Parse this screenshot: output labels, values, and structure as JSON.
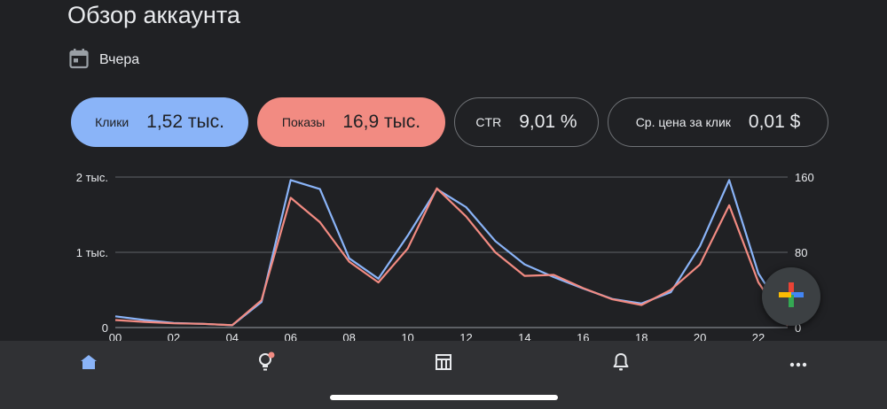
{
  "header": {
    "title": "Обзор аккаунта"
  },
  "date_filter": {
    "icon": "calendar-icon",
    "label": "Вчера"
  },
  "metrics": [
    {
      "label": "Клики",
      "value": "1,52 тыс.",
      "color": "#8ab4f8"
    },
    {
      "label": "Показы",
      "value": "16,9 тыс.",
      "color": "#f28b82"
    },
    {
      "label": "CTR",
      "value": "9,01 %"
    },
    {
      "label": "Ср. цена за клик",
      "value": "0,01 $"
    }
  ],
  "chart_data": {
    "type": "line",
    "title": "",
    "x": [
      "00",
      "01",
      "02",
      "03",
      "04",
      "05",
      "06",
      "07",
      "08",
      "09",
      "10",
      "11",
      "12",
      "13",
      "14",
      "15",
      "16",
      "17",
      "18",
      "19",
      "20",
      "21",
      "22",
      "23"
    ],
    "x_tick_labels": [
      "00",
      "02",
      "04",
      "06",
      "08",
      "10",
      "12",
      "14",
      "16",
      "18",
      "20",
      "22"
    ],
    "y_left": {
      "range": [
        0,
        2000
      ],
      "tick_labels": [
        "0",
        "1 тыс.",
        "2 тыс."
      ],
      "tick_values": [
        0,
        1000,
        2000
      ]
    },
    "y_right": {
      "range": [
        0,
        160
      ],
      "tick_labels": [
        "0",
        "80",
        "160"
      ],
      "tick_values": [
        0,
        80,
        160
      ]
    },
    "grid": true,
    "series": [
      {
        "axis": "left",
        "color": "#8ab4f8",
        "values": [
          150,
          100,
          60,
          50,
          30,
          340,
          1960,
          1840,
          920,
          650,
          1220,
          1840,
          1600,
          1150,
          840,
          670,
          520,
          380,
          320,
          470,
          1080,
          1960,
          720,
          120
        ]
      },
      {
        "axis": "right",
        "color": "#f28b82",
        "values": [
          8,
          6,
          4.5,
          4,
          2.5,
          29,
          138,
          112,
          70,
          48,
          84,
          148,
          118,
          80,
          55,
          56,
          42,
          30,
          24,
          40,
          67,
          130,
          48,
          2
        ]
      }
    ]
  },
  "fab": {
    "icon": "google-plus-icon"
  },
  "bottom_nav": [
    {
      "icon": "home-icon",
      "active": true
    },
    {
      "icon": "recommendations-icon",
      "badge": true
    },
    {
      "icon": "campaigns-table-icon"
    },
    {
      "icon": "notifications-bell-icon"
    },
    {
      "icon": "more-dots-icon"
    }
  ]
}
